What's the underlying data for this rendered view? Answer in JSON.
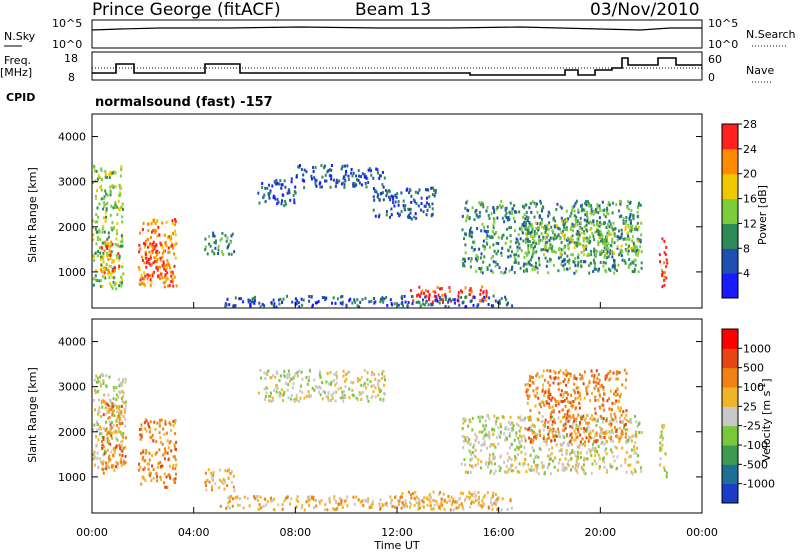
{
  "header": {
    "station": "Prince George (fitACF)",
    "beam": "Beam 13",
    "date": "03/Nov/2010"
  },
  "status_panels": {
    "nsky_label": "N.Sky",
    "nsky_ticks": [
      "10^5",
      "10^0"
    ],
    "nsearch_label": "N.Search",
    "nsearch_ticks": [
      "10^5",
      "10^0"
    ],
    "freq_label": "Freq.",
    "freq_unit": "[MHz]",
    "freq_ticks": [
      "18",
      "8"
    ],
    "nave_label": "Nave",
    "nave_ticks": [
      "60",
      "0"
    ],
    "cpid_label": "CPID",
    "cpid_text": "normalsound (fast) -157"
  },
  "chart_data": [
    {
      "type": "heatmap",
      "name": "power",
      "ylabel": "Slant Range [km]",
      "ylim": [
        200,
        4500
      ],
      "yticks": [
        "1000",
        "2000",
        "3000",
        "4000"
      ],
      "colorbar_label": "Power [dB]",
      "colorbar_ticks": [
        "4",
        "8",
        "12",
        "16",
        "20",
        "24",
        "28"
      ],
      "colorbar_colors": [
        "#1a1aff",
        "#1f4fb0",
        "#2e8b57",
        "#7ccd3c",
        "#f0c800",
        "#ff8c00",
        "#ff2020"
      ],
      "regions": [
        {
          "t0": 0.0,
          "t1": 1.2,
          "r0": 600,
          "r1": 3400,
          "level": 3
        },
        {
          "t0": 0.3,
          "t1": 1.1,
          "r0": 900,
          "r1": 1700,
          "level": 5
        },
        {
          "t0": 1.8,
          "t1": 3.3,
          "r0": 700,
          "r1": 2200,
          "level": 5
        },
        {
          "t0": 2.0,
          "t1": 3.0,
          "r0": 900,
          "r1": 1700,
          "level": 6
        },
        {
          "t0": 4.4,
          "t1": 5.6,
          "r0": 1400,
          "r1": 1900,
          "level": 2
        },
        {
          "t0": 6.5,
          "t1": 8.0,
          "r0": 2500,
          "r1": 3100,
          "level": 1
        },
        {
          "t0": 8.0,
          "t1": 11.5,
          "r0": 2900,
          "r1": 3400,
          "level": 1
        },
        {
          "t0": 11.0,
          "t1": 13.5,
          "r0": 2200,
          "r1": 2900,
          "level": 1
        },
        {
          "t0": 12.5,
          "t1": 15.5,
          "r0": 350,
          "r1": 700,
          "level": 6
        },
        {
          "t0": 5.0,
          "t1": 16.5,
          "r0": 250,
          "r1": 500,
          "level": 1
        },
        {
          "t0": 14.5,
          "t1": 21.6,
          "r0": 1000,
          "r1": 2600,
          "level": 2
        },
        {
          "t0": 17.0,
          "t1": 21.6,
          "r0": 1400,
          "r1": 2200,
          "level": 3
        },
        {
          "t0": 22.3,
          "t1": 22.6,
          "r0": 700,
          "r1": 1800,
          "level": 6
        }
      ]
    },
    {
      "type": "heatmap",
      "name": "velocity",
      "xlabel": "Time UT",
      "xticks": [
        "00:00",
        "04:00",
        "08:00",
        "12:00",
        "16:00",
        "20:00",
        "00:00"
      ],
      "xlim": [
        0,
        24
      ],
      "ylabel": "Slant Range [km]",
      "ylim": [
        200,
        4500
      ],
      "yticks": [
        "1000",
        "2000",
        "3000",
        "4000"
      ],
      "colorbar_label": "Velocity [m s",
      "colorbar_unit_exp": "-1",
      "colorbar_ticks": [
        "1000",
        "500",
        "100",
        "25",
        "-25",
        "-100",
        "-500",
        "-1000"
      ],
      "colorbar_colors": [
        "#1a3cc8",
        "#1e6e96",
        "#3c9b50",
        "#78c83c",
        "#c8c8c8",
        "#f0b428",
        "#f08214",
        "#e64614",
        "#ff0000"
      ],
      "regions": [
        {
          "t0": 0.0,
          "t1": 1.3,
          "r0": 1200,
          "r1": 3300,
          "level": 4
        },
        {
          "t0": 0.3,
          "t1": 1.3,
          "r0": 1100,
          "r1": 2700,
          "level": 6
        },
        {
          "t0": 1.8,
          "t1": 3.3,
          "r0": 800,
          "r1": 2300,
          "level": 6
        },
        {
          "t0": 4.4,
          "t1": 5.6,
          "r0": 700,
          "r1": 1200,
          "level": 5
        },
        {
          "t0": 6.5,
          "t1": 11.5,
          "r0": 2700,
          "r1": 3400,
          "level": 4
        },
        {
          "t0": 5.0,
          "t1": 16.5,
          "r0": 300,
          "r1": 600,
          "level": 5
        },
        {
          "t0": 12.0,
          "t1": 16.0,
          "r0": 400,
          "r1": 700,
          "level": 5
        },
        {
          "t0": 14.5,
          "t1": 21.6,
          "r0": 1100,
          "r1": 2400,
          "level": 4
        },
        {
          "t0": 17.0,
          "t1": 21.0,
          "r0": 1800,
          "r1": 3400,
          "level": 6
        },
        {
          "t0": 22.3,
          "t1": 22.6,
          "r0": 1000,
          "r1": 2200,
          "level": 4
        }
      ]
    }
  ]
}
